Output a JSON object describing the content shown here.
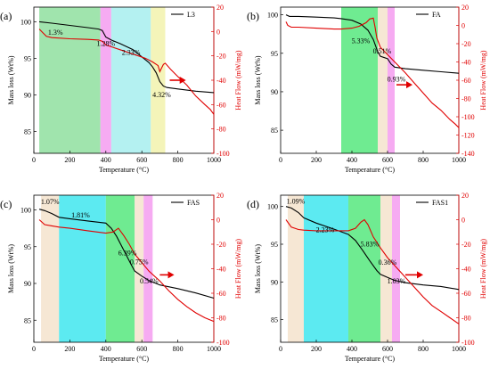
{
  "chart_data": [
    {
      "type": "line",
      "panel": "(a)",
      "xlabel": "Temperature (°C)",
      "ylabel": "Mass loss (Wt%)",
      "y2label": "Heat Flow (mW/mg)",
      "xlim": [
        0,
        1000
      ],
      "ylim": [
        82,
        102
      ],
      "y2lim": [
        -100,
        20
      ],
      "xticks": [
        0,
        200,
        400,
        600,
        800,
        1000
      ],
      "yticks": [
        85,
        90,
        95,
        100
      ],
      "y2ticks": [
        20,
        0,
        -20,
        -40,
        -60,
        -80,
        -100
      ],
      "legend": "L3",
      "legend_position": "top-right",
      "bands": [
        {
          "x0": 30,
          "x1": 370,
          "color": "#8fdf9f"
        },
        {
          "x0": 370,
          "x1": 430,
          "color": "#f59cf0"
        },
        {
          "x0": 430,
          "x1": 650,
          "color": "#a7efef"
        },
        {
          "x0": 650,
          "x1": 730,
          "color": "#f2f2ad"
        }
      ],
      "annotations": [
        {
          "text": "1.3%",
          "x": 120,
          "y": 98.2
        },
        {
          "text": "1.28%",
          "x": 400,
          "y": 96.7
        },
        {
          "text": "2.33%",
          "x": 540,
          "y": 95.5
        },
        {
          "text": "4.32%",
          "x": 710,
          "y": 89.7
        }
      ],
      "arrow": {
        "x0": 755,
        "x1": 845,
        "y2": -40
      },
      "series": [
        {
          "axis": "left",
          "color": "#000000",
          "x": [
            30,
            100,
            200,
            300,
            360,
            380,
            400,
            430,
            480,
            550,
            600,
            640,
            660,
            680,
            700,
            720,
            740,
            800,
            900,
            1000
          ],
          "y": [
            100,
            99.8,
            99.5,
            99.2,
            99.0,
            98.8,
            97.9,
            97.5,
            97.0,
            96.2,
            95.2,
            94.4,
            93.8,
            93.0,
            91.8,
            91.2,
            91.0,
            90.8,
            90.5,
            90.3
          ]
        },
        {
          "axis": "right",
          "color": "#e00000",
          "x": [
            30,
            50,
            70,
            100,
            200,
            300,
            360,
            380,
            400,
            440,
            500,
            560,
            620,
            660,
            690,
            700,
            710,
            720,
            730,
            760,
            800,
            850,
            900,
            950,
            980,
            1000
          ],
          "y": [
            2,
            -1,
            -4,
            -5,
            -6,
            -6.5,
            -7,
            -8,
            -11,
            -13,
            -16,
            -19,
            -22,
            -25,
            -28,
            -33,
            -30,
            -27,
            -26,
            -31,
            -37,
            -44,
            -53,
            -60,
            -64,
            -68
          ]
        }
      ]
    },
    {
      "type": "line",
      "panel": "(b)",
      "xlabel": "Temperature (°C)",
      "ylabel": "Mass loss (Wt%)",
      "y2label": "Heat Flow (mW/mg)",
      "xlim": [
        0,
        1000
      ],
      "ylim": [
        82,
        101
      ],
      "y2lim": [
        -140,
        20
      ],
      "xticks": [
        0,
        200,
        400,
        600,
        800,
        1000
      ],
      "yticks": [
        85,
        90,
        95,
        100
      ],
      "y2ticks": [
        20,
        0,
        -20,
        -40,
        -60,
        -80,
        -100,
        -120,
        -140
      ],
      "legend": "FA",
      "legend_position": "top-right",
      "bands": [
        {
          "x0": 340,
          "x1": 545,
          "color": "#56e87e"
        },
        {
          "x0": 545,
          "x1": 600,
          "color": "#f5e3cc"
        },
        {
          "x0": 600,
          "x1": 640,
          "color": "#f59cf0"
        }
      ],
      "annotations": [
        {
          "text": "5.33%",
          "x": 450,
          "y": 96.3
        },
        {
          "text": "0.51%",
          "x": 570,
          "y": 95.0
        },
        {
          "text": "0.93%",
          "x": 650,
          "y": 91.3
        }
      ],
      "arrow": {
        "x0": 650,
        "x1": 740,
        "y2": -65
      },
      "series": [
        {
          "axis": "left",
          "color": "#000000",
          "x": [
            30,
            50,
            100,
            200,
            300,
            340,
            400,
            450,
            490,
            520,
            545,
            560,
            600,
            620,
            640,
            700,
            800,
            900,
            1000
          ],
          "y": [
            100,
            99.8,
            99.8,
            99.7,
            99.6,
            99.5,
            99.3,
            98.8,
            98.0,
            96.8,
            95.2,
            94.6,
            94.3,
            93.6,
            93.2,
            93.0,
            92.8,
            92.6,
            92.4
          ]
        },
        {
          "axis": "right",
          "color": "#e00000",
          "x": [
            30,
            40,
            60,
            100,
            200,
            300,
            340,
            400,
            440,
            480,
            500,
            520,
            530,
            540,
            560,
            600,
            650,
            700,
            750,
            800,
            850,
            900,
            950,
            980,
            1000
          ],
          "y": [
            4,
            0,
            -2,
            -2,
            -3,
            -4,
            -4,
            -3,
            -1,
            3,
            7,
            8,
            -2,
            -14,
            -24,
            -32,
            -42,
            -52,
            -63,
            -74,
            -85,
            -93,
            -103,
            -108,
            -112
          ]
        }
      ]
    },
    {
      "type": "line",
      "panel": "(c)",
      "xlabel": "Temperature (°C)",
      "ylabel": "Mass loss (Wt%)",
      "y2label": "Heat Flow (mW/mg)",
      "xlim": [
        0,
        1000
      ],
      "ylim": [
        82,
        102
      ],
      "y2lim": [
        -100,
        20
      ],
      "xticks": [
        0,
        200,
        400,
        600,
        800,
        1000
      ],
      "yticks": [
        85,
        90,
        95,
        100
      ],
      "y2ticks": [
        20,
        0,
        -20,
        -40,
        -60,
        -80,
        -100
      ],
      "legend": "FAS",
      "legend_position": "top-right",
      "bands": [
        {
          "x0": 40,
          "x1": 140,
          "color": "#f5e3cc"
        },
        {
          "x0": 140,
          "x1": 400,
          "color": "#3fe6ee"
        },
        {
          "x0": 400,
          "x1": 560,
          "color": "#56e87e"
        },
        {
          "x0": 560,
          "x1": 610,
          "color": "#f5e3cc"
        },
        {
          "x0": 610,
          "x1": 660,
          "color": "#f59cf0"
        }
      ],
      "annotations": [
        {
          "text": "1.07%",
          "x": 90,
          "y": 100.8
        },
        {
          "text": "1.81%",
          "x": 260,
          "y": 99.0
        },
        {
          "text": "6.39%",
          "x": 520,
          "y": 93.8
        },
        {
          "text": "0.75%",
          "x": 585,
          "y": 92.6
        },
        {
          "text": "0.54%",
          "x": 640,
          "y": 90.0
        }
      ],
      "arrow": {
        "x0": 700,
        "x1": 780,
        "y2": -45
      },
      "series": [
        {
          "axis": "left",
          "color": "#000000",
          "x": [
            30,
            60,
            100,
            140,
            200,
            300,
            400,
            430,
            460,
            500,
            540,
            560,
            600,
            640,
            700,
            800,
            900,
            1000
          ],
          "y": [
            100.1,
            99.9,
            99.5,
            99.0,
            98.8,
            98.5,
            98.2,
            97.5,
            96.4,
            94.5,
            92.6,
            91.7,
            91.0,
            90.4,
            89.8,
            89.3,
            88.7,
            88.0
          ]
        },
        {
          "axis": "right",
          "color": "#e00000",
          "x": [
            30,
            60,
            100,
            140,
            200,
            300,
            400,
            440,
            470,
            500,
            530,
            560,
            600,
            640,
            700,
            750,
            800,
            850,
            900,
            950,
            1000
          ],
          "y": [
            0,
            -4,
            -5,
            -6,
            -7,
            -9,
            -11,
            -10,
            -7,
            -13,
            -20,
            -28,
            -35,
            -42,
            -50,
            -58,
            -65,
            -71,
            -76,
            -80,
            -83
          ]
        }
      ]
    },
    {
      "type": "line",
      "panel": "(d)",
      "xlabel": "Temperature (°C)",
      "ylabel": "Mass loss (Wt%)",
      "y2label": "Heat Flow (mW/mg)",
      "xlim": [
        0,
        1000
      ],
      "ylim": [
        82,
        101.5
      ],
      "y2lim": [
        -100,
        20
      ],
      "xticks": [
        0,
        200,
        400,
        600,
        800,
        1000
      ],
      "yticks": [
        85,
        90,
        95,
        100
      ],
      "y2ticks": [
        20,
        0,
        -20,
        -40,
        -60,
        -80,
        -100
      ],
      "legend": "FAS1",
      "legend_position": "top-right",
      "bands": [
        {
          "x0": 40,
          "x1": 130,
          "color": "#f5e3cc"
        },
        {
          "x0": 130,
          "x1": 380,
          "color": "#3fe6ee"
        },
        {
          "x0": 380,
          "x1": 560,
          "color": "#56e87e"
        },
        {
          "x0": 560,
          "x1": 625,
          "color": "#f5e3cc"
        },
        {
          "x0": 625,
          "x1": 670,
          "color": "#f59cf0"
        }
      ],
      "annotations": [
        {
          "text": "1.09%",
          "x": 85,
          "y": 100.4
        },
        {
          "text": "2.23%",
          "x": 250,
          "y": 96.6
        },
        {
          "text": "5.83%",
          "x": 500,
          "y": 94.7
        },
        {
          "text": "0.36%",
          "x": 600,
          "y": 92.3
        },
        {
          "text": "1.03%",
          "x": 650,
          "y": 89.8
        }
      ],
      "arrow": {
        "x0": 700,
        "x1": 800,
        "y2": -45
      },
      "series": [
        {
          "axis": "left",
          "color": "#000000",
          "x": [
            30,
            60,
            100,
            130,
            200,
            300,
            380,
            420,
            460,
            500,
            540,
            560,
            600,
            640,
            700,
            800,
            900,
            1000
          ],
          "y": [
            100.0,
            99.8,
            99.2,
            98.5,
            97.8,
            97.0,
            96.3,
            95.5,
            94.2,
            92.8,
            91.5,
            91.0,
            90.6,
            90.2,
            89.9,
            89.6,
            89.4,
            89.0
          ]
        },
        {
          "axis": "right",
          "color": "#e00000",
          "x": [
            30,
            60,
            100,
            130,
            200,
            300,
            380,
            420,
            450,
            470,
            490,
            520,
            560,
            600,
            650,
            700,
            750,
            800,
            850,
            900,
            950,
            1000
          ],
          "y": [
            0,
            -6,
            -8,
            -8.5,
            -9,
            -9,
            -9,
            -7,
            -2,
            0,
            -4,
            -14,
            -23,
            -31,
            -39,
            -47,
            -55,
            -63,
            -70,
            -75,
            -80,
            -85
          ]
        }
      ]
    }
  ]
}
